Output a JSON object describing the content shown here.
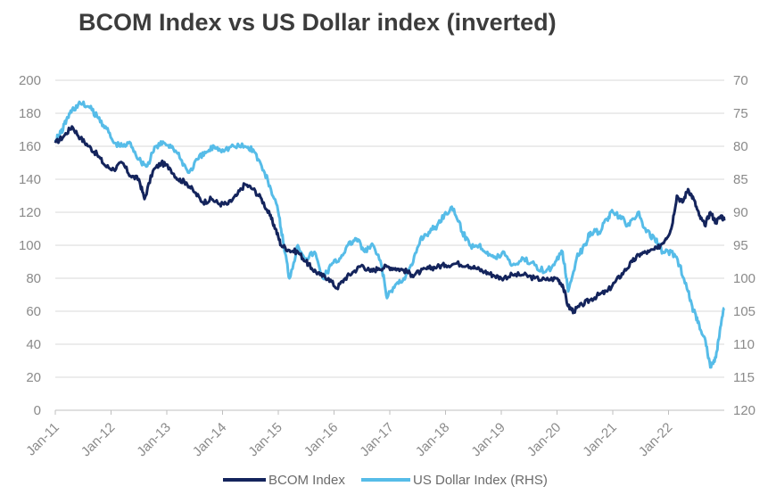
{
  "chart_data": {
    "type": "line",
    "title": "BCOM Index vs US Dollar index (inverted)",
    "x_tick_labels": [
      "Jan-11",
      "Jan-12",
      "Jan-13",
      "Jan-14",
      "Jan-15",
      "Jan-16",
      "Jan-17",
      "Jan-18",
      "Jan-19",
      "Jan-20",
      "Jan-21",
      "Jan-22"
    ],
    "left_axis": {
      "ylim": [
        0,
        200
      ],
      "ticks": [
        "0",
        "20",
        "40",
        "60",
        "80",
        "100",
        "120",
        "140",
        "160",
        "180",
        "200"
      ]
    },
    "right_axis": {
      "ylim": [
        120,
        70
      ],
      "inverted": true,
      "ticks": [
        "70",
        "75",
        "80",
        "85",
        "90",
        "95",
        "100",
        "105",
        "110",
        "115",
        "120"
      ]
    },
    "legend_position": "bottom",
    "series": [
      {
        "name": "BCOM Index",
        "axis": "left",
        "color": "#14245c",
        "points": [
          [
            2011.0,
            162
          ],
          [
            2011.15,
            166
          ],
          [
            2011.3,
            172
          ],
          [
            2011.45,
            165
          ],
          [
            2011.6,
            160
          ],
          [
            2011.75,
            155
          ],
          [
            2011.9,
            148
          ],
          [
            2012.05,
            146
          ],
          [
            2012.2,
            150
          ],
          [
            2012.35,
            142
          ],
          [
            2012.5,
            140
          ],
          [
            2012.6,
            128
          ],
          [
            2012.75,
            145
          ],
          [
            2012.9,
            150
          ],
          [
            2013.05,
            147
          ],
          [
            2013.2,
            140
          ],
          [
            2013.35,
            138
          ],
          [
            2013.5,
            132
          ],
          [
            2013.65,
            126
          ],
          [
            2013.8,
            128
          ],
          [
            2013.95,
            125
          ],
          [
            2014.1,
            125
          ],
          [
            2014.25,
            130
          ],
          [
            2014.4,
            137
          ],
          [
            2014.55,
            134
          ],
          [
            2014.7,
            128
          ],
          [
            2014.85,
            118
          ],
          [
            2014.95,
            110
          ],
          [
            2015.05,
            100
          ],
          [
            2015.2,
            97
          ],
          [
            2015.35,
            96
          ],
          [
            2015.5,
            90
          ],
          [
            2015.6,
            86
          ],
          [
            2015.75,
            82
          ],
          [
            2015.9,
            80
          ],
          [
            2016.05,
            74
          ],
          [
            2016.2,
            80
          ],
          [
            2016.35,
            84
          ],
          [
            2016.5,
            88
          ],
          [
            2016.65,
            84
          ],
          [
            2016.8,
            86
          ],
          [
            2016.95,
            87
          ],
          [
            2017.1,
            86
          ],
          [
            2017.25,
            85
          ],
          [
            2017.4,
            82
          ],
          [
            2017.55,
            84
          ],
          [
            2017.7,
            86
          ],
          [
            2017.85,
            87
          ],
          [
            2018.0,
            88
          ],
          [
            2018.2,
            89
          ],
          [
            2018.4,
            88
          ],
          [
            2018.55,
            86
          ],
          [
            2018.7,
            84
          ],
          [
            2018.85,
            82
          ],
          [
            2019.0,
            80
          ],
          [
            2019.2,
            82
          ],
          [
            2019.4,
            82
          ],
          [
            2019.6,
            80
          ],
          [
            2019.8,
            79
          ],
          [
            2020.0,
            80
          ],
          [
            2020.1,
            76
          ],
          [
            2020.2,
            63
          ],
          [
            2020.3,
            60
          ],
          [
            2020.45,
            64
          ],
          [
            2020.6,
            67
          ],
          [
            2020.75,
            70
          ],
          [
            2020.9,
            72
          ],
          [
            2021.05,
            78
          ],
          [
            2021.2,
            84
          ],
          [
            2021.35,
            90
          ],
          [
            2021.5,
            95
          ],
          [
            2021.65,
            96
          ],
          [
            2021.8,
            98
          ],
          [
            2021.95,
            104
          ],
          [
            2022.05,
            110
          ],
          [
            2022.15,
            130
          ],
          [
            2022.25,
            126
          ],
          [
            2022.35,
            134
          ],
          [
            2022.45,
            128
          ],
          [
            2022.55,
            118
          ],
          [
            2022.65,
            112
          ],
          [
            2022.75,
            120
          ],
          [
            2022.85,
            114
          ],
          [
            2022.95,
            118
          ],
          [
            2023.0,
            115
          ]
        ]
      },
      {
        "name": "US Dollar Index (RHS)",
        "axis": "right",
        "color": "#56bce8",
        "points": [
          [
            2011.0,
            79
          ],
          [
            2011.1,
            78
          ],
          [
            2011.2,
            76
          ],
          [
            2011.3,
            74.5
          ],
          [
            2011.45,
            73.5
          ],
          [
            2011.6,
            74
          ],
          [
            2011.75,
            75.5
          ],
          [
            2011.9,
            77
          ],
          [
            2012.05,
            79.5
          ],
          [
            2012.2,
            80
          ],
          [
            2012.35,
            79.5
          ],
          [
            2012.5,
            82
          ],
          [
            2012.65,
            83
          ],
          [
            2012.8,
            80
          ],
          [
            2012.95,
            79.5
          ],
          [
            2013.1,
            80
          ],
          [
            2013.25,
            82
          ],
          [
            2013.4,
            84
          ],
          [
            2013.55,
            82
          ],
          [
            2013.7,
            81
          ],
          [
            2013.85,
            80
          ],
          [
            2014.0,
            80.5
          ],
          [
            2014.2,
            80
          ],
          [
            2014.4,
            80
          ],
          [
            2014.55,
            80.5
          ],
          [
            2014.7,
            83
          ],
          [
            2014.85,
            86
          ],
          [
            2015.0,
            90
          ],
          [
            2015.1,
            95
          ],
          [
            2015.2,
            100
          ],
          [
            2015.35,
            95
          ],
          [
            2015.5,
            97
          ],
          [
            2015.65,
            96
          ],
          [
            2015.8,
            100
          ],
          [
            2015.95,
            98
          ],
          [
            2016.1,
            97
          ],
          [
            2016.25,
            95
          ],
          [
            2016.4,
            94
          ],
          [
            2016.55,
            96
          ],
          [
            2016.7,
            95
          ],
          [
            2016.85,
            98
          ],
          [
            2016.95,
            103
          ],
          [
            2017.1,
            101
          ],
          [
            2017.25,
            100
          ],
          [
            2017.4,
            98
          ],
          [
            2017.55,
            94
          ],
          [
            2017.7,
            93
          ],
          [
            2017.85,
            92
          ],
          [
            2018.0,
            90
          ],
          [
            2018.15,
            89.5
          ],
          [
            2018.3,
            93
          ],
          [
            2018.45,
            95
          ],
          [
            2018.6,
            95
          ],
          [
            2018.75,
            96
          ],
          [
            2018.9,
            97
          ],
          [
            2019.05,
            96
          ],
          [
            2019.2,
            98
          ],
          [
            2019.4,
            97
          ],
          [
            2019.6,
            98
          ],
          [
            2019.8,
            99
          ],
          [
            2019.95,
            98
          ],
          [
            2020.1,
            96
          ],
          [
            2020.2,
            102
          ],
          [
            2020.35,
            97
          ],
          [
            2020.5,
            95
          ],
          [
            2020.6,
            93
          ],
          [
            2020.75,
            93
          ],
          [
            2020.9,
            91
          ],
          [
            2021.0,
            90
          ],
          [
            2021.15,
            91
          ],
          [
            2021.3,
            92
          ],
          [
            2021.45,
            90
          ],
          [
            2021.6,
            93
          ],
          [
            2021.75,
            94
          ],
          [
            2021.9,
            96
          ],
          [
            2022.05,
            96
          ],
          [
            2022.2,
            98
          ],
          [
            2022.35,
            102
          ],
          [
            2022.45,
            105
          ],
          [
            2022.55,
            107
          ],
          [
            2022.65,
            109
          ],
          [
            2022.75,
            113.5
          ],
          [
            2022.85,
            112
          ],
          [
            2022.92,
            108
          ],
          [
            2023.0,
            104.5
          ]
        ]
      }
    ]
  }
}
